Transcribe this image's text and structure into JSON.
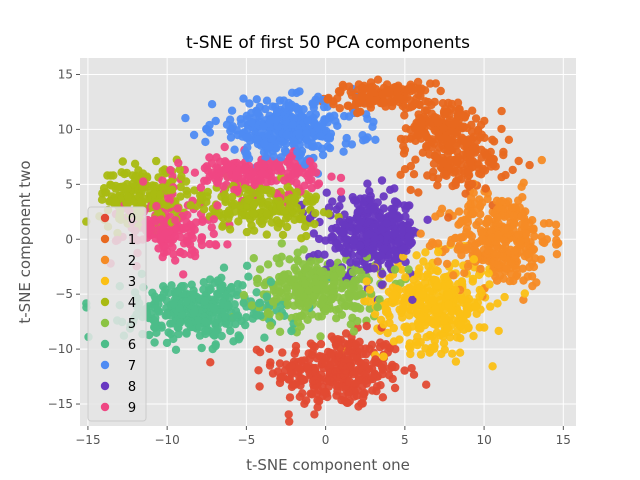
{
  "chart_data": {
    "type": "scatter",
    "title": "t-SNE of first 50 PCA components",
    "xlabel": "t-SNE component one",
    "ylabel": "t-SNE component two",
    "xlim": [
      -15.5,
      15.8
    ],
    "ylim": [
      -17,
      16.5
    ],
    "xticks": [
      -15,
      -10,
      -5,
      0,
      5,
      10,
      15
    ],
    "yticks": [
      -15,
      -10,
      -5,
      0,
      5,
      10,
      15
    ],
    "grid": true,
    "legend_position": "left",
    "series": [
      {
        "name": "0",
        "color": "#E24A33",
        "clusters": [
          {
            "cx": 0.8,
            "cy": -12.0,
            "sx": 2.0,
            "sy": 1.7,
            "n": 320
          }
        ]
      },
      {
        "name": "1",
        "color": "#E8681F",
        "clusters": [
          {
            "cx": 3.5,
            "cy": 13.0,
            "sx": 1.6,
            "sy": 0.6,
            "n": 150
          },
          {
            "cx": 7.5,
            "cy": 10.2,
            "sx": 1.2,
            "sy": 1.1,
            "n": 150
          },
          {
            "cx": 8.5,
            "cy": 7.0,
            "sx": 1.5,
            "sy": 1.3,
            "n": 150
          }
        ]
      },
      {
        "name": "2",
        "color": "#F58B25",
        "clusters": [
          {
            "cx": 11.0,
            "cy": 0.0,
            "sx": 1.6,
            "sy": 2.1,
            "n": 350
          }
        ]
      },
      {
        "name": "3",
        "color": "#FBC015",
        "clusters": [
          {
            "cx": 6.8,
            "cy": -5.8,
            "sx": 1.8,
            "sy": 2.0,
            "n": 380
          }
        ]
      },
      {
        "name": "4",
        "color": "#A9BA12",
        "clusters": [
          {
            "cx": -11.5,
            "cy": 4.0,
            "sx": 1.4,
            "sy": 1.3,
            "n": 190
          },
          {
            "cx": -4.0,
            "cy": 3.0,
            "sx": 1.9,
            "sy": 1.1,
            "n": 200
          }
        ]
      },
      {
        "name": "5",
        "color": "#8BC343",
        "clusters": [
          {
            "cx": -0.5,
            "cy": -4.5,
            "sx": 2.0,
            "sy": 1.5,
            "n": 300
          }
        ]
      },
      {
        "name": "6",
        "color": "#4CBD89",
        "clusters": [
          {
            "cx": -8.0,
            "cy": -6.5,
            "sx": 2.3,
            "sy": 1.4,
            "n": 340
          }
        ]
      },
      {
        "name": "7",
        "color": "#4E8BF3",
        "clusters": [
          {
            "cx": -2.5,
            "cy": 10.0,
            "sx": 2.3,
            "sy": 1.3,
            "n": 330
          }
        ]
      },
      {
        "name": "8",
        "color": "#6838C1",
        "clusters": [
          {
            "cx": 3.0,
            "cy": 0.3,
            "sx": 1.5,
            "sy": 1.7,
            "n": 350
          }
        ]
      },
      {
        "name": "9",
        "color": "#EF4783",
        "clusters": [
          {
            "cx": -4.5,
            "cy": 6.0,
            "sx": 2.1,
            "sy": 0.8,
            "n": 190
          },
          {
            "cx": -10.0,
            "cy": 1.0,
            "sx": 1.5,
            "sy": 1.3,
            "n": 170
          }
        ]
      }
    ]
  }
}
